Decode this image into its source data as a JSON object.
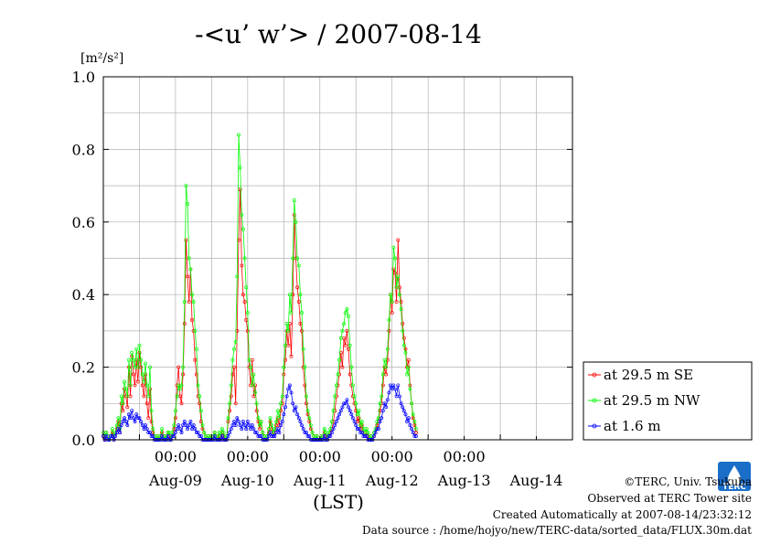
{
  "chart_data": {
    "type": "line",
    "title": "-<u’ w’> / 2007-08-14",
    "ylabel_unit": "[m²/s²]",
    "xlabel": "(LST)",
    "ylim": [
      0,
      1.0
    ],
    "yticks": [
      "0.0",
      "0.2",
      "0.4",
      "0.6",
      "0.8",
      "1.0"
    ],
    "xlim": [
      "2007-08-08 12:00",
      "2007-08-14 24:00"
    ],
    "time_ticks": [
      "00:00",
      "00:00",
      "00:00",
      "00:00",
      "00:00"
    ],
    "day_labels": [
      "Aug-09",
      "Aug-10",
      "Aug-11",
      "Aug-12",
      "Aug-13",
      "Aug-14"
    ],
    "grid": true,
    "legend_position": "right",
    "sampling_interval_minutes": 30,
    "series": [
      {
        "name": "at 29.5 m SE",
        "color": "#ff0000",
        "start": "2007-08-08 12:00",
        "values": [
          0.01,
          0.0,
          0.02,
          0.01,
          0.0,
          0.01,
          0.02,
          0.0,
          0.01,
          0.03,
          0.05,
          0.02,
          0.1,
          0.08,
          0.14,
          0.12,
          0.09,
          0.2,
          0.12,
          0.23,
          0.18,
          0.15,
          0.22,
          0.16,
          0.24,
          0.2,
          0.15,
          0.12,
          0.18,
          0.1,
          0.06,
          0.14,
          0.05,
          0.02,
          0.01,
          0.0,
          0.01,
          0.0,
          0.01,
          0.02,
          0.0,
          0.01,
          0.0,
          0.02,
          0.01,
          0.0,
          0.01,
          0.03,
          0.06,
          0.15,
          0.2,
          0.12,
          0.1,
          0.18,
          0.32,
          0.55,
          0.45,
          0.38,
          0.47,
          0.33,
          0.3,
          0.22,
          0.18,
          0.12,
          0.1,
          0.05,
          0.03,
          0.02,
          0.01,
          0.0,
          0.01,
          0.0,
          0.01,
          0.0,
          0.02,
          0.01,
          0.0,
          0.01,
          0.0,
          0.02,
          0.01,
          0.0,
          0.0,
          0.05,
          0.08,
          0.12,
          0.18,
          0.2,
          0.1,
          0.3,
          0.55,
          0.69,
          0.48,
          0.4,
          0.38,
          0.33,
          0.3,
          0.2,
          0.15,
          0.22,
          0.12,
          0.15,
          0.08,
          0.05,
          0.03,
          0.05,
          0.02,
          0.01,
          0.0,
          0.01,
          0.02,
          0.05,
          0.03,
          0.01,
          0.02,
          0.04,
          0.06,
          0.04,
          0.08,
          0.1,
          0.18,
          0.22,
          0.3,
          0.26,
          0.32,
          0.23,
          0.4,
          0.62,
          0.5,
          0.42,
          0.38,
          0.32,
          0.3,
          0.2,
          0.15,
          0.1,
          0.07,
          0.05,
          0.03,
          0.02,
          0.01,
          0.0,
          0.01,
          0.0,
          0.0,
          0.01,
          0.0,
          0.02,
          0.01,
          0.0,
          0.01,
          0.02,
          0.03,
          0.05,
          0.08,
          0.12,
          0.15,
          0.18,
          0.24,
          0.2,
          0.28,
          0.26,
          0.3,
          0.25,
          0.18,
          0.15,
          0.12,
          0.1,
          0.08,
          0.05,
          0.06,
          0.03,
          0.04,
          0.02,
          0.01,
          0.02,
          0.01,
          0.0,
          0.01,
          0.0,
          0.01,
          0.02,
          0.04,
          0.05,
          0.08,
          0.1,
          0.15,
          0.2,
          0.18,
          0.22,
          0.3,
          0.4,
          0.35,
          0.47,
          0.46,
          0.38,
          0.55,
          0.42,
          0.38,
          0.32,
          0.28,
          0.25,
          0.2,
          0.22,
          0.15,
          0.1,
          0.06,
          0.04,
          0.02
        ]
      },
      {
        "name": "at 29.5 m NW",
        "color": "#00ff00",
        "start": "2007-08-08 12:00",
        "values": [
          0.02,
          0.01,
          0.02,
          0.01,
          0.0,
          0.01,
          0.03,
          0.01,
          0.02,
          0.04,
          0.06,
          0.03,
          0.12,
          0.1,
          0.16,
          0.14,
          0.12,
          0.22,
          0.15,
          0.24,
          0.22,
          0.2,
          0.25,
          0.2,
          0.26,
          0.22,
          0.18,
          0.16,
          0.21,
          0.15,
          0.12,
          0.2,
          0.08,
          0.03,
          0.01,
          0.0,
          0.01,
          0.0,
          0.01,
          0.03,
          0.0,
          0.01,
          0.0,
          0.02,
          0.02,
          0.0,
          0.02,
          0.04,
          0.08,
          0.12,
          0.15,
          0.14,
          0.15,
          0.2,
          0.38,
          0.7,
          0.65,
          0.5,
          0.47,
          0.4,
          0.38,
          0.3,
          0.25,
          0.15,
          0.12,
          0.08,
          0.04,
          0.02,
          0.01,
          0.0,
          0.01,
          0.0,
          0.01,
          0.0,
          0.02,
          0.01,
          0.0,
          0.02,
          0.01,
          0.03,
          0.02,
          0.0,
          0.01,
          0.06,
          0.1,
          0.15,
          0.22,
          0.25,
          0.27,
          0.45,
          0.84,
          0.75,
          0.62,
          0.58,
          0.5,
          0.42,
          0.35,
          0.22,
          0.2,
          0.15,
          0.18,
          0.13,
          0.1,
          0.06,
          0.04,
          0.05,
          0.02,
          0.01,
          0.0,
          0.01,
          0.03,
          0.06,
          0.04,
          0.02,
          0.03,
          0.05,
          0.08,
          0.06,
          0.1,
          0.12,
          0.2,
          0.26,
          0.32,
          0.3,
          0.4,
          0.35,
          0.5,
          0.66,
          0.6,
          0.5,
          0.48,
          0.4,
          0.35,
          0.25,
          0.2,
          0.12,
          0.08,
          0.06,
          0.04,
          0.02,
          0.01,
          0.0,
          0.01,
          0.0,
          0.0,
          0.01,
          0.0,
          0.03,
          0.02,
          0.0,
          0.02,
          0.03,
          0.05,
          0.08,
          0.12,
          0.15,
          0.18,
          0.22,
          0.28,
          0.3,
          0.32,
          0.35,
          0.36,
          0.34,
          0.26,
          0.2,
          0.15,
          0.12,
          0.1,
          0.07,
          0.08,
          0.04,
          0.05,
          0.03,
          0.02,
          0.03,
          0.02,
          0.0,
          0.01,
          0.0,
          0.02,
          0.03,
          0.05,
          0.06,
          0.1,
          0.12,
          0.18,
          0.22,
          0.2,
          0.25,
          0.33,
          0.4,
          0.38,
          0.53,
          0.5,
          0.42,
          0.45,
          0.4,
          0.36,
          0.3,
          0.26,
          0.24,
          0.18,
          0.2,
          0.14,
          0.1,
          0.07,
          0.05,
          0.03
        ]
      },
      {
        "name": "at 1.6 m",
        "color": "#0000ff",
        "start": "2007-08-08 12:00",
        "values": [
          0.01,
          0.0,
          0.01,
          0.0,
          0.0,
          0.01,
          0.01,
          0.0,
          0.01,
          0.02,
          0.03,
          0.02,
          0.04,
          0.05,
          0.06,
          0.05,
          0.04,
          0.07,
          0.06,
          0.08,
          0.06,
          0.05,
          0.07,
          0.06,
          0.06,
          0.05,
          0.04,
          0.03,
          0.04,
          0.03,
          0.02,
          0.02,
          0.01,
          0.01,
          0.0,
          0.0,
          0.0,
          0.0,
          0.0,
          0.01,
          0.0,
          0.0,
          0.0,
          0.01,
          0.0,
          0.0,
          0.01,
          0.01,
          0.02,
          0.03,
          0.04,
          0.03,
          0.02,
          0.04,
          0.05,
          0.04,
          0.03,
          0.04,
          0.05,
          0.03,
          0.04,
          0.03,
          0.02,
          0.02,
          0.01,
          0.01,
          0.0,
          0.0,
          0.0,
          0.0,
          0.0,
          0.0,
          0.0,
          0.0,
          0.01,
          0.0,
          0.0,
          0.0,
          0.0,
          0.01,
          0.0,
          0.0,
          0.0,
          0.01,
          0.02,
          0.03,
          0.04,
          0.05,
          0.04,
          0.06,
          0.05,
          0.04,
          0.03,
          0.05,
          0.04,
          0.03,
          0.05,
          0.04,
          0.03,
          0.04,
          0.03,
          0.02,
          0.02,
          0.01,
          0.01,
          0.01,
          0.0,
          0.0,
          0.0,
          0.0,
          0.01,
          0.02,
          0.01,
          0.01,
          0.01,
          0.02,
          0.03,
          0.02,
          0.04,
          0.05,
          0.07,
          0.09,
          0.12,
          0.14,
          0.15,
          0.13,
          0.1,
          0.08,
          0.09,
          0.07,
          0.06,
          0.05,
          0.04,
          0.03,
          0.02,
          0.02,
          0.01,
          0.01,
          0.0,
          0.0,
          0.0,
          0.0,
          0.0,
          0.0,
          0.0,
          0.0,
          0.0,
          0.01,
          0.0,
          0.0,
          0.01,
          0.01,
          0.02,
          0.03,
          0.04,
          0.05,
          0.06,
          0.07,
          0.08,
          0.09,
          0.1,
          0.1,
          0.11,
          0.09,
          0.08,
          0.07,
          0.06,
          0.05,
          0.04,
          0.03,
          0.03,
          0.02,
          0.02,
          0.01,
          0.01,
          0.01,
          0.0,
          0.0,
          0.0,
          0.0,
          0.01,
          0.02,
          0.03,
          0.03,
          0.05,
          0.06,
          0.08,
          0.1,
          0.09,
          0.11,
          0.13,
          0.15,
          0.14,
          0.15,
          0.14,
          0.12,
          0.15,
          0.12,
          0.1,
          0.09,
          0.08,
          0.07,
          0.05,
          0.06,
          0.04,
          0.03,
          0.02,
          0.01,
          0.01
        ]
      }
    ]
  },
  "footer": {
    "copyright": "©TERC, Univ. Tsukuba",
    "observed": "Observed at TERC Tower site",
    "created": "Created Automatically at 2007-08-14/23:32:12",
    "source": "Data source : /home/hojyo/new/TERC-data/sorted_data/FLUX.30m.dat"
  },
  "logo": {
    "text": "TERC",
    "color": "#1a6ec8"
  }
}
